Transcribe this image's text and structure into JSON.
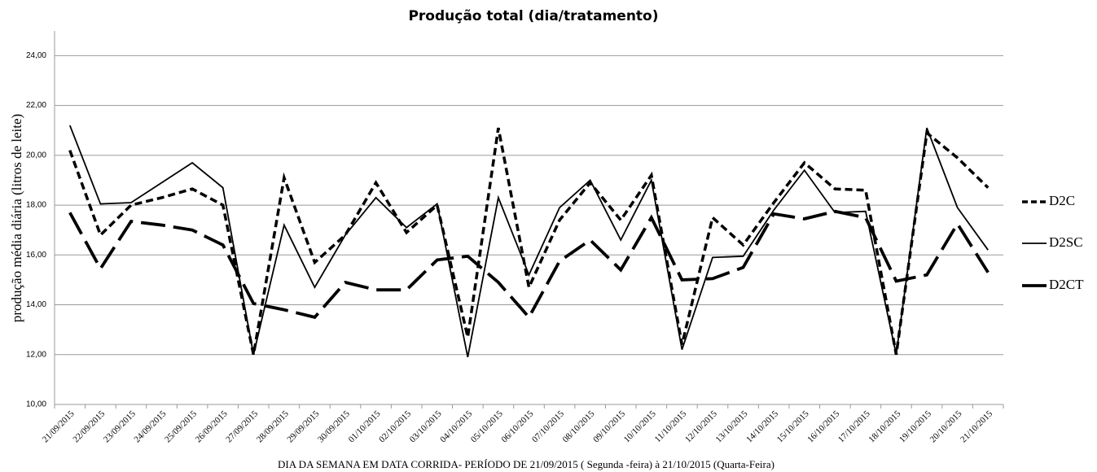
{
  "chart_data": {
    "type": "line",
    "title": "Produção  total  (dia/tratamento)",
    "y_label": "produção média diária  (litros de leite)",
    "x_label": "DIA  DA SEMANA EM  DATA CORRIDA-  PERÍODO  DE 21/09/2015  ( Segunda -feira) à 21/10/2015 (Quarta-Feira)",
    "categories": [
      "21/09/2015",
      "22/09/2015",
      "23/09/2015",
      "24/09/2015",
      "25/09/2015",
      "26/09/2015",
      "27/09/2015",
      "28/09/2015",
      "29/09/2015",
      "30/09/2015",
      "01/10/2015",
      "02/10/2015",
      "03/10/2015",
      "04/10/2015",
      "05/10/2015",
      "06/10/2015",
      "07/10/2015",
      "08/10/2015",
      "09/10/2015",
      "10/10/2015",
      "11/10/2015",
      "12/10/2015",
      "13/10/2015",
      "14/10/2015",
      "15/10/2015",
      "16/10/2015",
      "17/10/2015",
      "18/10/2015",
      "19/10/2015",
      "20/10/2015",
      "21/10/2015"
    ],
    "series": [
      {
        "name": "D2C",
        "color": "#000000",
        "line_style": "dashed",
        "values": [
          20.2,
          16.8,
          18.0,
          18.3,
          18.65,
          18.0,
          12.0,
          19.1,
          15.7,
          16.8,
          18.9,
          16.9,
          18.0,
          12.7,
          21.1,
          14.7,
          17.4,
          18.9,
          17.4,
          19.2,
          12.4,
          17.5,
          16.4,
          18.1,
          19.7,
          18.65,
          18.6,
          12.0,
          20.9,
          19.9,
          18.7
        ]
      },
      {
        "name": "D2SC",
        "color": "#000000",
        "line_style": "solid",
        "values": [
          21.2,
          18.05,
          18.1,
          18.9,
          19.7,
          18.7,
          12.0,
          17.2,
          14.7,
          16.8,
          18.3,
          17.1,
          18.05,
          11.9,
          18.3,
          15.2,
          17.9,
          19.0,
          16.6,
          19.0,
          12.2,
          15.9,
          15.95,
          17.8,
          19.4,
          17.7,
          17.75,
          12.0,
          21.1,
          17.9,
          16.2
        ]
      },
      {
        "name": "D2CT",
        "color": "#000000",
        "line_style": "longdash",
        "values": [
          17.7,
          15.45,
          17.35,
          17.2,
          17.0,
          16.4,
          14.05,
          13.8,
          13.5,
          14.9,
          14.6,
          14.6,
          15.8,
          15.95,
          14.9,
          13.5,
          15.75,
          16.6,
          15.4,
          17.5,
          15.0,
          15.05,
          15.5,
          17.65,
          17.45,
          17.75,
          17.5,
          14.95,
          15.2,
          17.25,
          15.3
        ]
      }
    ],
    "ylim": [
      10,
      24.6
    ],
    "yticks": [
      {
        "value": 10,
        "label": "10,00"
      },
      {
        "value": 12,
        "label": "12,00"
      },
      {
        "value": 14,
        "label": "14,00"
      },
      {
        "value": 16,
        "label": "16,00"
      },
      {
        "value": 18,
        "label": "18,00"
      },
      {
        "value": 20,
        "label": "20,00"
      },
      {
        "value": 22,
        "label": "22,00"
      },
      {
        "value": 24,
        "label": "24,00"
      }
    ],
    "grid": true,
    "legend": "right"
  }
}
